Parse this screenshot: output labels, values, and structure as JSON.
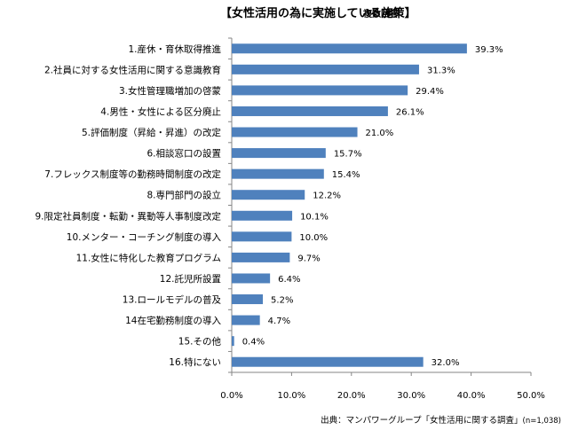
{
  "chart_data": {
    "type": "bar",
    "orientation": "horizontal",
    "title": "【女性活用の為に実施している施策】",
    "subtitle": "複数回答",
    "categories": [
      "1.産休・育休取得推進",
      "2.社員に対する女性活用に関する意識教育",
      "3.女性管理職増加の啓蒙",
      "4.男性・女性による区分廃止",
      "5.評価制度（昇給・昇進）の改定",
      "6.相談窓口の設置",
      "7.フレックス制度等の勤務時間制度の改定",
      "8.専門部門の設立",
      "9.限定社員制度・転勤・異動等人事制度改定",
      "10.メンター・コーチング制度の導入",
      "11.女性に特化した教育プログラム",
      "12.託児所設置",
      "13.ロールモデルの普及",
      "14在宅勤務制度の導入",
      "15.その他",
      "16.特にない"
    ],
    "values": [
      39.3,
      31.3,
      29.4,
      26.1,
      21.0,
      15.7,
      15.4,
      12.2,
      10.1,
      10.0,
      9.7,
      6.4,
      5.2,
      4.7,
      0.4,
      32.0
    ],
    "value_labels": [
      "39.3%",
      "31.3%",
      "29.4%",
      "26.1%",
      "21.0%",
      "15.7%",
      "15.4%",
      "12.2%",
      "10.1%",
      "10.0%",
      "9.7%",
      "6.4%",
      "5.2%",
      "4.7%",
      "0.4%",
      "32.0%"
    ],
    "xlim": [
      0,
      50
    ],
    "xticks": [
      "0.0%",
      "10.0%",
      "20.0%",
      "30.0%",
      "40.0%",
      "50.0%"
    ],
    "grid": false,
    "bar_color": "#4f81bd",
    "source": "出典：マンパワーグループ「女性活用に関する調査」",
    "source_note": "(n=1,038)"
  }
}
